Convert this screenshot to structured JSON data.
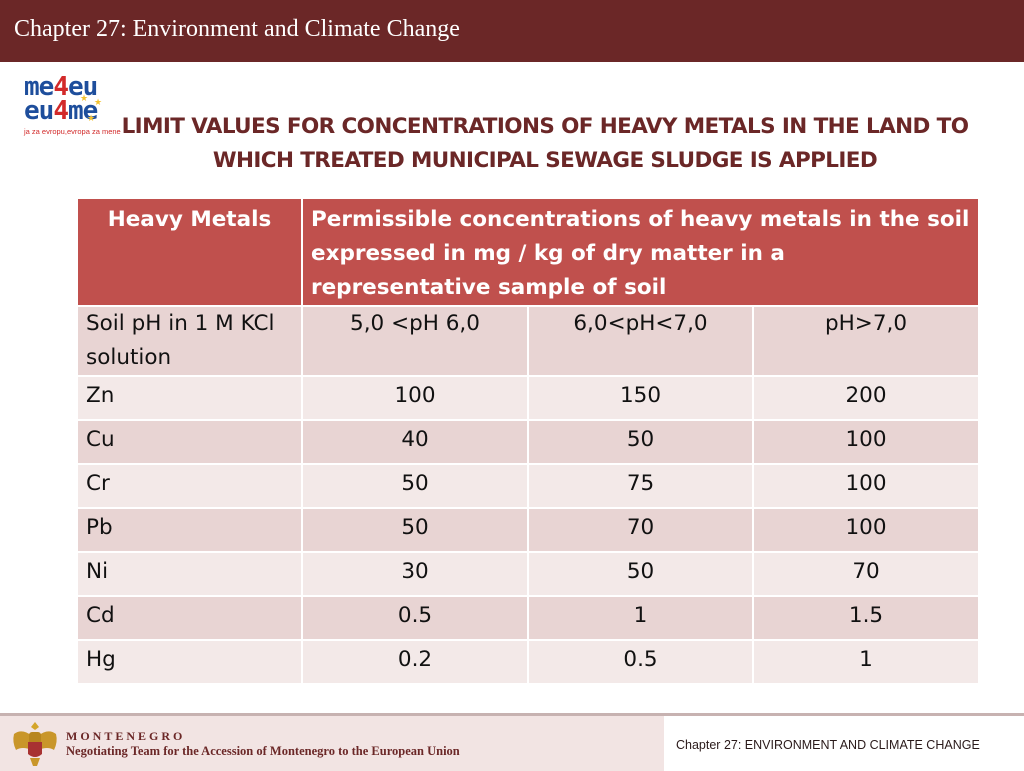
{
  "header": {
    "title": "Chapter 27: Environment and Climate Change"
  },
  "logo": {
    "line1_a": "me",
    "line1_b": "4",
    "line1_c": "eu",
    "line2_a": "eu",
    "line2_b": "4",
    "line2_c": "me",
    "tagline": "ja za evropu,evropa za mene",
    "star_color": "#f2c230"
  },
  "slide": {
    "title": "LIMIT VALUES FOR CONCENTRATIONS OF HEAVY METALS IN THE LAND TO WHICH TREATED MUNICIPAL SEWAGE SLUDGE IS APPLIED"
  },
  "table": {
    "header_col1": "Heavy Metals",
    "header_col2": "Permissible concentrations of heavy metals in the soil expressed in mg / kg of dry matter in a representative sample of soil",
    "ph_row": {
      "label": "Soil pH in 1 M KCl solution",
      "ph1": "5,0 <pH 6,0",
      "ph2": "6,0<pH<7,0",
      "ph3": "pH>7,0"
    },
    "rows": [
      {
        "metal": "Zn",
        "v1": "100",
        "v2": "150",
        "v3": "200"
      },
      {
        "metal": "Cu",
        "v1": "40",
        "v2": "50",
        "v3": "100"
      },
      {
        "metal": "Cr",
        "v1": "50",
        "v2": "75",
        "v3": "100"
      },
      {
        "metal": "Pb",
        "v1": "50",
        "v2": "70",
        "v3": "100"
      },
      {
        "metal": "Ni",
        "v1": "30",
        "v2": "50",
        "v3": "70"
      },
      {
        "metal": "Cd",
        "v1": "0.5",
        "v2": "1",
        "v3": "1.5"
      },
      {
        "metal": "Hg",
        "v1": "0.2",
        "v2": "0.5",
        "v3": "1"
      }
    ]
  },
  "footer": {
    "country": "MONTENEGRO",
    "team": "Negotiating Team for the Accession of  Montenegro to the European Union",
    "chapter": "Chapter 27:  ENVIRONMENT AND CLIMATE CHANGE",
    "coat_icon": "coat-of-arms-icon"
  },
  "colors": {
    "header_bar": "#6b2727",
    "table_header": "#c0504d",
    "row_dark": "#e8d4d3",
    "row_light": "#f3e9e8",
    "title_text": "#6b2727"
  }
}
